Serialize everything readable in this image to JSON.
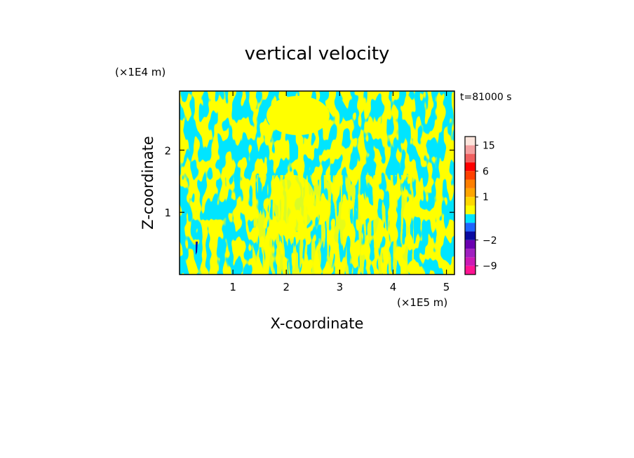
{
  "chart_data": {
    "type": "heatmap",
    "title": "vertical velocity",
    "xlabel": "X-coordinate",
    "ylabel": "Z-coordinate",
    "x_unit": "(×1E5 m)",
    "y_unit": "(×1E4 m)",
    "time_label": "t=81000 s",
    "xlim": [
      0,
      5.15
    ],
    "ylim": [
      0,
      2.95
    ],
    "x_ticks": [
      1,
      2,
      3,
      4,
      5
    ],
    "y_ticks": [
      1,
      2
    ],
    "x_tick_labels": [
      "1",
      "2",
      "3",
      "4",
      "5"
    ],
    "y_tick_labels": [
      "1",
      "2"
    ],
    "field_description": "Alternating positive/negative vertical-velocity bands, mostly between -2 and 1",
    "dominant_colors": {
      "positive": "#ffff00",
      "negative": "#00e5ff"
    },
    "colorbar": {
      "levels": [
        -12,
        -9,
        -6,
        -4,
        -2,
        -1,
        -0.5,
        0,
        0.5,
        1,
        2,
        4,
        6,
        9,
        12,
        15,
        20
      ],
      "colors": [
        "#ff1493",
        "#cc1ab5",
        "#a020c0",
        "#6a00b0",
        "#0a0aa0",
        "#1e64ff",
        "#00e5ff",
        "#ffff00",
        "#ffd700",
        "#ffa500",
        "#ff7f00",
        "#ff4000",
        "#ff0000",
        "#f06060",
        "#f4a0a0",
        "#fde5dc"
      ],
      "tick_values": [
        15,
        6,
        1,
        -2,
        -9
      ],
      "tick_labels": [
        "15",
        "6",
        "1",
        "−2",
        "−9"
      ]
    }
  }
}
